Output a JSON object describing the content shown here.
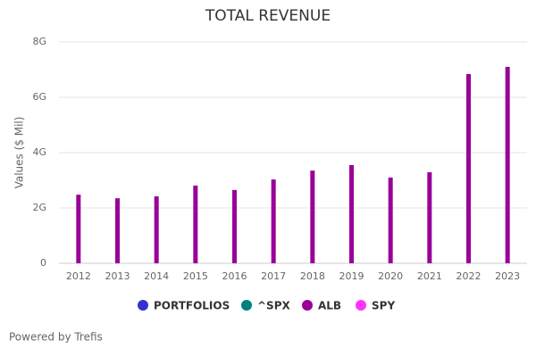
{
  "chart_data": {
    "type": "bar",
    "title": "TOTAL REVENUE",
    "y_label": "Values ($ Mil)",
    "categories": [
      "2012",
      "2013",
      "2014",
      "2015",
      "2016",
      "2017",
      "2018",
      "2019",
      "2020",
      "2021",
      "2022",
      "2023"
    ],
    "series": [
      {
        "name": "PORTFOLIOS",
        "color": "#3333cc",
        "values": [
          null,
          null,
          null,
          null,
          null,
          null,
          null,
          null,
          null,
          null,
          null,
          null
        ]
      },
      {
        "name": "^SPX",
        "color": "#008080",
        "values": [
          null,
          null,
          null,
          null,
          null,
          null,
          null,
          null,
          null,
          null,
          null,
          null
        ]
      },
      {
        "name": "ALB",
        "color": "#990099",
        "values": [
          2.48,
          2.35,
          2.42,
          2.81,
          2.65,
          3.03,
          3.35,
          3.55,
          3.1,
          3.29,
          6.84,
          7.1
        ]
      },
      {
        "name": "SPY",
        "color": "#ff33ff",
        "values": [
          null,
          null,
          null,
          null,
          null,
          null,
          null,
          null,
          null,
          null,
          null,
          null
        ]
      }
    ],
    "ylim": [
      0,
      8
    ],
    "yticks": [
      0,
      {
        "value": 2,
        "label": "2G"
      },
      {
        "value": 4,
        "label": "4G"
      },
      {
        "value": 6,
        "label": "6G"
      },
      {
        "value": 8,
        "label": "8G"
      }
    ],
    "grid": true,
    "credits": "Powered by Trefis"
  }
}
